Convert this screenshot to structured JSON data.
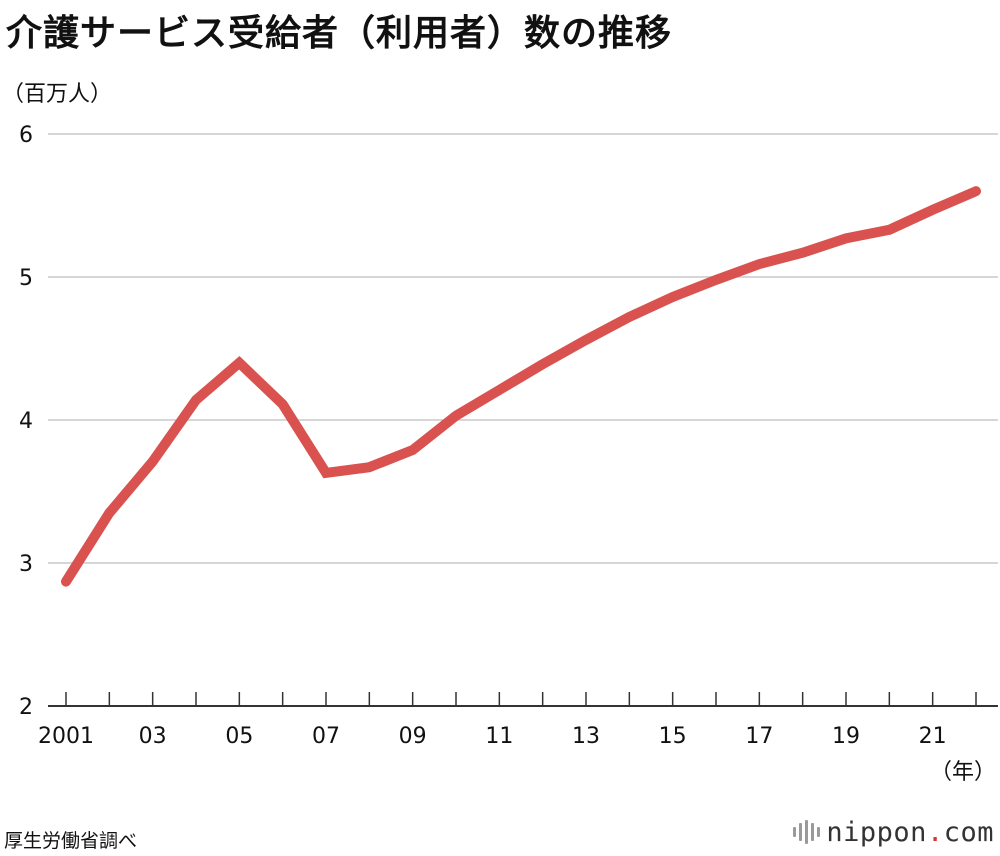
{
  "title": "介護サービス受給者（利用者）数の推移",
  "y_unit": "（百万人）",
  "x_unit": "（年）",
  "source": "厚生労働省調べ",
  "brand": {
    "name": "nippon",
    "dot": ".",
    "suffix": "com"
  },
  "colors": {
    "line": "#d9524f",
    "grid": "#c8c8c8",
    "axis": "#333333",
    "brand_dot": "#e0303a"
  },
  "chart_data": {
    "type": "line",
    "title": "介護サービス受給者（利用者）数の推移",
    "xlabel": "（年）",
    "ylabel": "（百万人）",
    "ylim": [
      2,
      6
    ],
    "yticks": [
      2,
      3,
      4,
      5,
      6
    ],
    "grid": true,
    "x": [
      2001,
      2002,
      2003,
      2004,
      2005,
      2006,
      2007,
      2008,
      2009,
      2010,
      2011,
      2012,
      2013,
      2014,
      2015,
      2016,
      2017,
      2018,
      2019,
      2020,
      2021,
      2022
    ],
    "x_tick_labels": [
      {
        "x": 2001,
        "label": "2001"
      },
      {
        "x": 2003,
        "label": "03"
      },
      {
        "x": 2005,
        "label": "05"
      },
      {
        "x": 2007,
        "label": "07"
      },
      {
        "x": 2009,
        "label": "09"
      },
      {
        "x": 2011,
        "label": "11"
      },
      {
        "x": 2013,
        "label": "13"
      },
      {
        "x": 2015,
        "label": "15"
      },
      {
        "x": 2017,
        "label": "17"
      },
      {
        "x": 2019,
        "label": "19"
      },
      {
        "x": 2021,
        "label": "21"
      }
    ],
    "series": [
      {
        "values": [
          2.87,
          3.35,
          3.71,
          4.14,
          4.4,
          4.11,
          3.63,
          3.67,
          3.79,
          4.03,
          4.21,
          4.39,
          4.56,
          4.72,
          4.86,
          4.98,
          5.09,
          5.17,
          5.27,
          5.33,
          5.47,
          5.6
        ]
      }
    ]
  }
}
